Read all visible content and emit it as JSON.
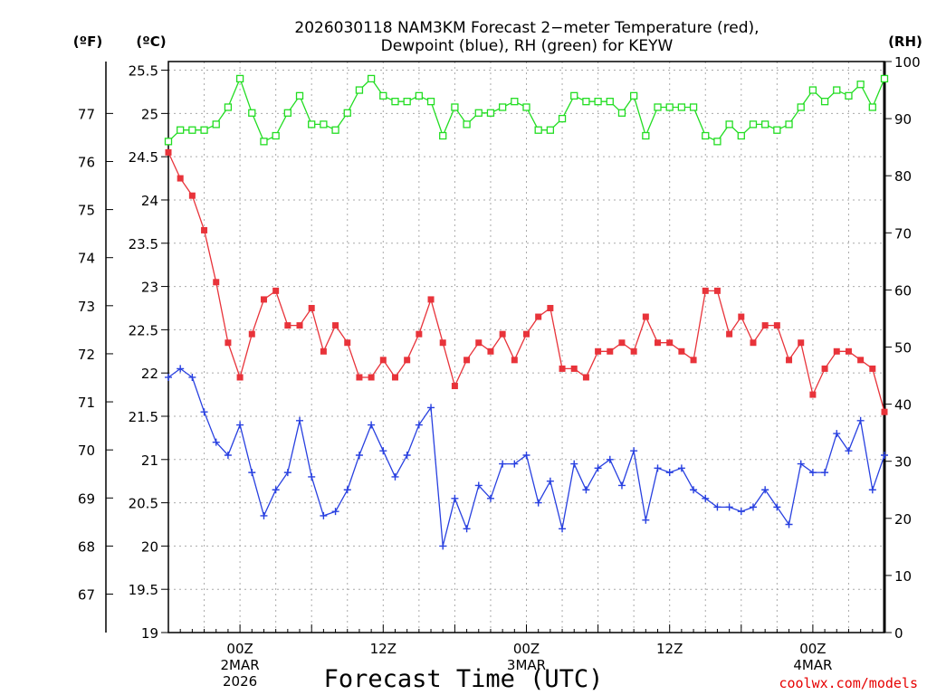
{
  "chart_data": {
    "type": "line",
    "title": "2026030118 NAM3KM Forecast 2-meter Temperature (red), Dewpoint (blue), RH (green) for KEYW",
    "title_lines": [
      "2026030118 NAM3KM Forecast 2−meter Temperature (red),",
      "Dewpoint (blue), RH (green) for KEYW"
    ],
    "xlabel": "Forecast Time (UTC)",
    "credit": "coolwx.com/models",
    "units": {
      "fahrenheit": "(ºF)",
      "celsius": "(ºC)",
      "rh": "(RH)"
    },
    "x_range_hours": [
      0,
      60
    ],
    "celsius_range": [
      19,
      25.6
    ],
    "rh_range": [
      0,
      100
    ],
    "celsius_ticks": [
      "19",
      "19.5",
      "20",
      "20.5",
      "21",
      "21.5",
      "22",
      "22.5",
      "23",
      "23.5",
      "24",
      "24.5",
      "25",
      "25.5"
    ],
    "fahrenheit_ticks": [
      "67",
      "68",
      "69",
      "70",
      "71",
      "72",
      "73",
      "74",
      "75",
      "76",
      "77"
    ],
    "rh_ticks": [
      "0",
      "10",
      "20",
      "30",
      "40",
      "50",
      "60",
      "70",
      "80",
      "90",
      "100"
    ],
    "x_ticks": [
      {
        "hour": 6,
        "label": "00Z",
        "date": "2MAR",
        "year": "2026"
      },
      {
        "hour": 18,
        "label": "12Z",
        "date": "",
        "year": ""
      },
      {
        "hour": 30,
        "label": "00Z",
        "date": "3MAR",
        "year": ""
      },
      {
        "hour": 42,
        "label": "12Z",
        "date": "",
        "year": ""
      },
      {
        "hour": 54,
        "label": "00Z",
        "date": "4MAR",
        "year": ""
      }
    ],
    "series": [
      {
        "name": "Temperature",
        "unit": "C",
        "color": "#e8333a",
        "marker": "filled-square",
        "values": [
          24.55,
          24.25,
          24.05,
          23.65,
          23.05,
          22.35,
          21.95,
          22.45,
          22.85,
          22.95,
          22.55,
          22.55,
          22.75,
          22.25,
          22.55,
          22.35,
          21.95,
          21.95,
          22.15,
          21.95,
          22.15,
          22.45,
          22.85,
          22.35,
          21.85,
          22.15,
          22.35,
          22.25,
          22.45,
          22.15,
          22.45,
          22.65,
          22.75,
          22.05,
          22.05,
          21.95,
          22.25,
          22.25,
          22.35,
          22.25,
          22.65,
          22.35,
          22.35,
          22.25,
          22.15,
          22.95,
          22.95,
          22.45,
          22.65,
          22.35,
          22.55,
          22.55,
          22.15,
          22.35,
          21.75,
          22.05,
          22.25,
          22.25,
          22.15,
          22.05,
          21.55
        ]
      },
      {
        "name": "Dewpoint",
        "unit": "C",
        "color": "#2840e0",
        "marker": "plus",
        "values": [
          21.95,
          22.05,
          21.95,
          21.55,
          21.2,
          21.05,
          21.4,
          20.85,
          20.35,
          20.65,
          20.85,
          21.45,
          20.8,
          20.35,
          20.4,
          20.65,
          21.05,
          21.4,
          21.1,
          20.8,
          21.05,
          21.4,
          21.6,
          20.0,
          20.55,
          20.2,
          20.7,
          20.55,
          20.95,
          20.95,
          21.05,
          20.5,
          20.75,
          20.2,
          20.95,
          20.65,
          20.9,
          21.0,
          20.7,
          21.1,
          20.3,
          20.9,
          20.85,
          20.9,
          20.65,
          20.55,
          20.45,
          20.45,
          20.4,
          20.45,
          20.65,
          20.45,
          20.25,
          20.95,
          20.85,
          20.85,
          21.3,
          21.1,
          21.45,
          20.65,
          21.05
        ]
      },
      {
        "name": "RH",
        "unit": "%",
        "color": "#22dd22",
        "marker": "open-square",
        "values": [
          86,
          88,
          88,
          88,
          89,
          92,
          97,
          91,
          86,
          87,
          91,
          94,
          89,
          89,
          88,
          91,
          95,
          97,
          94,
          93,
          93,
          94,
          93,
          87,
          92,
          89,
          91,
          91,
          92,
          93,
          92,
          88,
          88,
          90,
          94,
          93,
          93,
          93,
          91,
          94,
          87,
          92,
          92,
          92,
          92,
          87,
          86,
          89,
          87,
          89,
          89,
          88,
          89,
          92,
          95,
          93,
          95,
          94,
          96,
          92,
          97
        ]
      }
    ]
  }
}
